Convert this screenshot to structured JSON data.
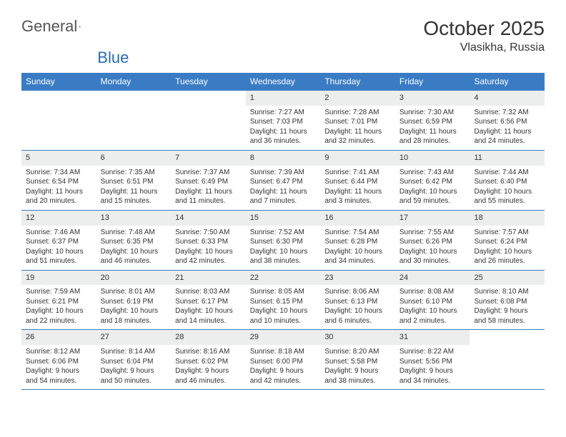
{
  "header": {
    "logo_general": "General",
    "logo_blue": "Blue",
    "month_title": "October 2025",
    "location": "Vlasikha, Russia"
  },
  "style": {
    "header_bg": "#3a7cc4",
    "daynum_bg": "#eceded",
    "border_color": "#3a7cc4",
    "logo_blue_color": "#2b6bb2"
  },
  "weekdays": [
    "Sunday",
    "Monday",
    "Tuesday",
    "Wednesday",
    "Thursday",
    "Friday",
    "Saturday"
  ],
  "weeks": [
    [
      {
        "empty": true
      },
      {
        "empty": true
      },
      {
        "empty": true
      },
      {
        "day": "1",
        "sunrise": "Sunrise: 7:27 AM",
        "sunset": "Sunset: 7:03 PM",
        "daylight": "Daylight: 11 hours and 36 minutes."
      },
      {
        "day": "2",
        "sunrise": "Sunrise: 7:28 AM",
        "sunset": "Sunset: 7:01 PM",
        "daylight": "Daylight: 11 hours and 32 minutes."
      },
      {
        "day": "3",
        "sunrise": "Sunrise: 7:30 AM",
        "sunset": "Sunset: 6:59 PM",
        "daylight": "Daylight: 11 hours and 28 minutes."
      },
      {
        "day": "4",
        "sunrise": "Sunrise: 7:32 AM",
        "sunset": "Sunset: 6:56 PM",
        "daylight": "Daylight: 11 hours and 24 minutes."
      }
    ],
    [
      {
        "day": "5",
        "sunrise": "Sunrise: 7:34 AM",
        "sunset": "Sunset: 6:54 PM",
        "daylight": "Daylight: 11 hours and 20 minutes."
      },
      {
        "day": "6",
        "sunrise": "Sunrise: 7:35 AM",
        "sunset": "Sunset: 6:51 PM",
        "daylight": "Daylight: 11 hours and 15 minutes."
      },
      {
        "day": "7",
        "sunrise": "Sunrise: 7:37 AM",
        "sunset": "Sunset: 6:49 PM",
        "daylight": "Daylight: 11 hours and 11 minutes."
      },
      {
        "day": "8",
        "sunrise": "Sunrise: 7:39 AM",
        "sunset": "Sunset: 6:47 PM",
        "daylight": "Daylight: 11 hours and 7 minutes."
      },
      {
        "day": "9",
        "sunrise": "Sunrise: 7:41 AM",
        "sunset": "Sunset: 6:44 PM",
        "daylight": "Daylight: 11 hours and 3 minutes."
      },
      {
        "day": "10",
        "sunrise": "Sunrise: 7:43 AM",
        "sunset": "Sunset: 6:42 PM",
        "daylight": "Daylight: 10 hours and 59 minutes."
      },
      {
        "day": "11",
        "sunrise": "Sunrise: 7:44 AM",
        "sunset": "Sunset: 6:40 PM",
        "daylight": "Daylight: 10 hours and 55 minutes."
      }
    ],
    [
      {
        "day": "12",
        "sunrise": "Sunrise: 7:46 AM",
        "sunset": "Sunset: 6:37 PM",
        "daylight": "Daylight: 10 hours and 51 minutes."
      },
      {
        "day": "13",
        "sunrise": "Sunrise: 7:48 AM",
        "sunset": "Sunset: 6:35 PM",
        "daylight": "Daylight: 10 hours and 46 minutes."
      },
      {
        "day": "14",
        "sunrise": "Sunrise: 7:50 AM",
        "sunset": "Sunset: 6:33 PM",
        "daylight": "Daylight: 10 hours and 42 minutes."
      },
      {
        "day": "15",
        "sunrise": "Sunrise: 7:52 AM",
        "sunset": "Sunset: 6:30 PM",
        "daylight": "Daylight: 10 hours and 38 minutes."
      },
      {
        "day": "16",
        "sunrise": "Sunrise: 7:54 AM",
        "sunset": "Sunset: 6:28 PM",
        "daylight": "Daylight: 10 hours and 34 minutes."
      },
      {
        "day": "17",
        "sunrise": "Sunrise: 7:55 AM",
        "sunset": "Sunset: 6:26 PM",
        "daylight": "Daylight: 10 hours and 30 minutes."
      },
      {
        "day": "18",
        "sunrise": "Sunrise: 7:57 AM",
        "sunset": "Sunset: 6:24 PM",
        "daylight": "Daylight: 10 hours and 26 minutes."
      }
    ],
    [
      {
        "day": "19",
        "sunrise": "Sunrise: 7:59 AM",
        "sunset": "Sunset: 6:21 PM",
        "daylight": "Daylight: 10 hours and 22 minutes."
      },
      {
        "day": "20",
        "sunrise": "Sunrise: 8:01 AM",
        "sunset": "Sunset: 6:19 PM",
        "daylight": "Daylight: 10 hours and 18 minutes."
      },
      {
        "day": "21",
        "sunrise": "Sunrise: 8:03 AM",
        "sunset": "Sunset: 6:17 PM",
        "daylight": "Daylight: 10 hours and 14 minutes."
      },
      {
        "day": "22",
        "sunrise": "Sunrise: 8:05 AM",
        "sunset": "Sunset: 6:15 PM",
        "daylight": "Daylight: 10 hours and 10 minutes."
      },
      {
        "day": "23",
        "sunrise": "Sunrise: 8:06 AM",
        "sunset": "Sunset: 6:13 PM",
        "daylight": "Daylight: 10 hours and 6 minutes."
      },
      {
        "day": "24",
        "sunrise": "Sunrise: 8:08 AM",
        "sunset": "Sunset: 6:10 PM",
        "daylight": "Daylight: 10 hours and 2 minutes."
      },
      {
        "day": "25",
        "sunrise": "Sunrise: 8:10 AM",
        "sunset": "Sunset: 6:08 PM",
        "daylight": "Daylight: 9 hours and 58 minutes."
      }
    ],
    [
      {
        "day": "26",
        "sunrise": "Sunrise: 8:12 AM",
        "sunset": "Sunset: 6:06 PM",
        "daylight": "Daylight: 9 hours and 54 minutes."
      },
      {
        "day": "27",
        "sunrise": "Sunrise: 8:14 AM",
        "sunset": "Sunset: 6:04 PM",
        "daylight": "Daylight: 9 hours and 50 minutes."
      },
      {
        "day": "28",
        "sunrise": "Sunrise: 8:16 AM",
        "sunset": "Sunset: 6:02 PM",
        "daylight": "Daylight: 9 hours and 46 minutes."
      },
      {
        "day": "29",
        "sunrise": "Sunrise: 8:18 AM",
        "sunset": "Sunset: 6:00 PM",
        "daylight": "Daylight: 9 hours and 42 minutes."
      },
      {
        "day": "30",
        "sunrise": "Sunrise: 8:20 AM",
        "sunset": "Sunset: 5:58 PM",
        "daylight": "Daylight: 9 hours and 38 minutes."
      },
      {
        "day": "31",
        "sunrise": "Sunrise: 8:22 AM",
        "sunset": "Sunset: 5:56 PM",
        "daylight": "Daylight: 9 hours and 34 minutes."
      },
      {
        "empty": true
      }
    ]
  ]
}
